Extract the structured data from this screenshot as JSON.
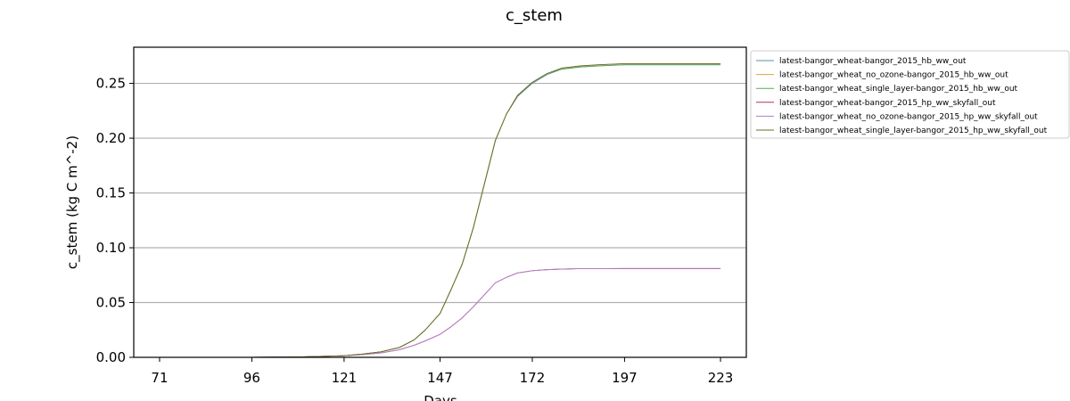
{
  "chart_data": {
    "type": "line",
    "title": "c_stem",
    "xlabel": "Days",
    "ylabel": "c_stem (kg C m^-2)",
    "xlim": [
      64,
      230
    ],
    "ylim": [
      0,
      0.283
    ],
    "xticks": [
      71,
      96,
      121,
      147,
      172,
      197,
      223
    ],
    "xtick_labels": [
      "71",
      "96",
      "121",
      "147",
      "172",
      "197",
      "223"
    ],
    "yticks": [
      0,
      0.05,
      0.1,
      0.15,
      0.2,
      0.25
    ],
    "ytick_labels": [
      "0.00",
      "0.05",
      "0.10",
      "0.15",
      "0.20",
      "0.25"
    ],
    "grid": "horizontal",
    "legend_position": "outside-right",
    "series": [
      {
        "name": "latest-bangor_wheat-bangor_2015_hb_ww_out",
        "color": "#5b8fa8",
        "x": [
          71,
          96,
          110,
          121,
          126,
          131,
          136,
          140,
          143,
          147,
          150,
          153,
          156,
          159,
          162,
          165,
          168,
          172,
          176,
          180,
          185,
          190,
          197,
          210,
          223
        ],
        "y": [
          0,
          0,
          0.0005,
          0.0015,
          0.003,
          0.005,
          0.009,
          0.016,
          0.025,
          0.04,
          0.062,
          0.085,
          0.118,
          0.158,
          0.198,
          0.222,
          0.238,
          0.25,
          0.258,
          0.263,
          0.265,
          0.266,
          0.267,
          0.267,
          0.267
        ]
      },
      {
        "name": "latest-bangor_wheat_no_ozone-bangor_2015_hb_ww_out",
        "color": "#d9a441",
        "x": [
          71,
          96,
          110,
          121,
          126,
          131,
          136,
          140,
          143,
          147,
          150,
          153,
          156,
          159,
          162,
          165,
          168,
          172,
          176,
          180,
          185,
          190,
          197,
          210,
          223
        ],
        "y": [
          0,
          0,
          0.0005,
          0.0015,
          0.003,
          0.005,
          0.009,
          0.016,
          0.025,
          0.04,
          0.062,
          0.085,
          0.118,
          0.158,
          0.198,
          0.222,
          0.239,
          0.251,
          0.259,
          0.264,
          0.266,
          0.267,
          0.268,
          0.268,
          0.268
        ]
      },
      {
        "name": "latest-bangor_wheat_single_layer-bangor_2015_hb_ww_out",
        "color": "#5aa65a",
        "x": [
          71,
          96,
          110,
          121,
          126,
          131,
          136,
          140,
          143,
          147,
          150,
          153,
          156,
          159,
          162,
          165,
          168,
          172,
          176,
          180,
          185,
          190,
          197,
          210,
          223
        ],
        "y": [
          0,
          0,
          0.0005,
          0.0015,
          0.003,
          0.005,
          0.009,
          0.016,
          0.025,
          0.04,
          0.062,
          0.085,
          0.118,
          0.158,
          0.198,
          0.222,
          0.239,
          0.251,
          0.259,
          0.263,
          0.265,
          0.266,
          0.267,
          0.267,
          0.267
        ]
      },
      {
        "name": "latest-bangor_wheat-bangor_2015_hp_ww_skyfall_out",
        "color": "#b0305a",
        "x": [
          71,
          96,
          110,
          121,
          126,
          131,
          136,
          140,
          143,
          147,
          150,
          153,
          156,
          159,
          162,
          165,
          168,
          172,
          176,
          180,
          185,
          190,
          197,
          210,
          223
        ],
        "y": [
          0,
          0,
          0.0005,
          0.0015,
          0.0025,
          0.004,
          0.007,
          0.011,
          0.015,
          0.021,
          0.028,
          0.036,
          0.046,
          0.057,
          0.068,
          0.073,
          0.077,
          0.079,
          0.08,
          0.0805,
          0.081,
          0.081,
          0.081,
          0.081,
          0.081
        ]
      },
      {
        "name": "latest-bangor_wheat_no_ozone-bangor_2015_hp_ww_skyfall_out",
        "color": "#b07ec6",
        "x": [
          71,
          96,
          110,
          121,
          126,
          131,
          136,
          140,
          143,
          147,
          150,
          153,
          156,
          159,
          162,
          165,
          168,
          172,
          176,
          180,
          185,
          190,
          197,
          210,
          223
        ],
        "y": [
          0,
          0,
          0.0005,
          0.0015,
          0.0025,
          0.004,
          0.007,
          0.011,
          0.015,
          0.021,
          0.028,
          0.036,
          0.046,
          0.057,
          0.068,
          0.073,
          0.077,
          0.079,
          0.08,
          0.0805,
          0.081,
          0.081,
          0.0812,
          0.0812,
          0.0812
        ]
      },
      {
        "name": "latest-bangor_wheat_single_layer-bangor_2015_hp_ww_skyfall_out",
        "color": "#6b6b2a",
        "x": [
          71,
          96,
          110,
          121,
          126,
          131,
          136,
          140,
          143,
          147,
          150,
          153,
          156,
          159,
          162,
          165,
          168,
          172,
          176,
          180,
          185,
          190,
          197,
          210,
          223
        ],
        "y": [
          0,
          0,
          0.0005,
          0.0015,
          0.003,
          0.005,
          0.009,
          0.016,
          0.025,
          0.04,
          0.062,
          0.085,
          0.118,
          0.158,
          0.198,
          0.222,
          0.239,
          0.251,
          0.259,
          0.264,
          0.266,
          0.267,
          0.268,
          0.268,
          0.268
        ]
      }
    ]
  }
}
